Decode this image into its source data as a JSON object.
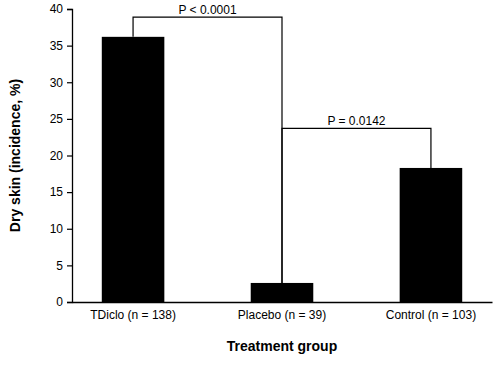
{
  "chart_data": {
    "type": "bar",
    "x_label": "Treatment group",
    "y_label": "Dry skin (incidence, %)",
    "categories": [
      "TDiclo (n = 138)",
      "Placebo (n = 39)",
      "Control (n = 103)"
    ],
    "values": [
      36.2,
      2.6,
      18.3
    ],
    "color": "#000000",
    "ylim": [
      0,
      40
    ],
    "yticks": [
      0,
      5,
      10,
      15,
      20,
      25,
      30,
      35,
      40
    ],
    "grid": false,
    "annotations": [
      {
        "text": "P < 0.0001",
        "y": 38.9,
        "from": 0,
        "to": 1
      },
      {
        "text": "P = 0.0142",
        "y": 23.7,
        "from": 1,
        "to": 2
      }
    ]
  }
}
